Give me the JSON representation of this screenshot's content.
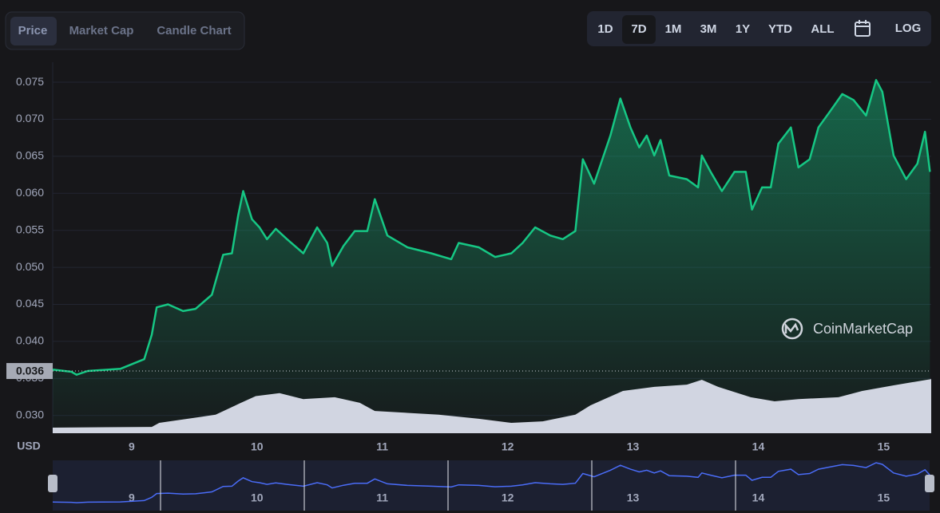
{
  "controls": {
    "tabs": [
      "Price",
      "Market Cap",
      "Candle Chart"
    ],
    "ranges": [
      "1D",
      "7D",
      "1M",
      "3M",
      "1Y",
      "YTD",
      "ALL"
    ],
    "scale": "LOG"
  },
  "chart_data": {
    "type": "area",
    "ylabel": "USD",
    "watermark": "CoinMarketCap",
    "grid": true,
    "current_price": 0.036,
    "xlim": [
      8.37,
      15.38
    ],
    "xticks": [
      9,
      10,
      11,
      12,
      13,
      14,
      15
    ],
    "ylim": [
      0.0276,
      0.0777
    ],
    "yticks": [
      {
        "value": 0.03,
        "label": "0.030"
      },
      0.035,
      {
        "value": 0.04,
        "label": "0.040"
      },
      0.045,
      {
        "value": 0.05,
        "label": "0.050"
      },
      0.055,
      {
        "value": 0.06,
        "label": "0.060"
      },
      0.065,
      {
        "value": 0.07,
        "label": "0.070"
      },
      0.075
    ],
    "y2lim": [
      0,
      100
    ],
    "series": [
      {
        "name": "Price",
        "color": "#16c784",
        "x": [
          8.37,
          8.52,
          8.56,
          8.65,
          8.91,
          9.1,
          9.16,
          9.2,
          9.29,
          9.41,
          9.51,
          9.64,
          9.73,
          9.8,
          9.85,
          9.89,
          9.96,
          10.02,
          10.08,
          10.15,
          10.24,
          10.37,
          10.48,
          10.56,
          10.6,
          10.69,
          10.78,
          10.88,
          10.94,
          11.04,
          11.2,
          11.39,
          11.55,
          11.61,
          11.77,
          11.9,
          12.03,
          12.12,
          12.22,
          12.34,
          12.44,
          12.54,
          12.6,
          12.69,
          12.82,
          12.9,
          12.98,
          13.05,
          13.11,
          13.17,
          13.22,
          13.29,
          13.43,
          13.52,
          13.55,
          13.62,
          13.71,
          13.81,
          13.9,
          13.95,
          14.03,
          14.1,
          14.16,
          14.26,
          14.32,
          14.41,
          14.48,
          14.57,
          14.67,
          14.76,
          14.86,
          14.94,
          14.99,
          15.08,
          15.18,
          15.27,
          15.33,
          15.37
        ],
        "values": [
          0.0362,
          0.0359,
          0.0355,
          0.036,
          0.0363,
          0.0376,
          0.0409,
          0.0446,
          0.045,
          0.0441,
          0.0444,
          0.0463,
          0.0517,
          0.0519,
          0.057,
          0.0603,
          0.0565,
          0.0554,
          0.0538,
          0.0552,
          0.0538,
          0.0519,
          0.0554,
          0.0533,
          0.0502,
          0.0529,
          0.0549,
          0.0549,
          0.0592,
          0.0543,
          0.0527,
          0.0519,
          0.0511,
          0.0533,
          0.0527,
          0.0514,
          0.0519,
          0.0533,
          0.0554,
          0.0543,
          0.0538,
          0.0549,
          0.0646,
          0.0613,
          0.0678,
          0.0728,
          0.0689,
          0.0662,
          0.0678,
          0.0651,
          0.0672,
          0.0624,
          0.0619,
          0.0608,
          0.0651,
          0.0629,
          0.0603,
          0.0629,
          0.0629,
          0.0578,
          0.0608,
          0.0608,
          0.0667,
          0.0689,
          0.0635,
          0.0646,
          0.0689,
          0.071,
          0.0734,
          0.0726,
          0.0705,
          0.0753,
          0.0737,
          0.0651,
          0.0619,
          0.064,
          0.0683,
          0.0629
        ]
      },
      {
        "color": "#d1d5e1",
        "axis": "y2",
        "x": [
          8.37,
          9.16,
          9.22,
          9.67,
          9.86,
          9.99,
          10.18,
          10.37,
          10.62,
          10.82,
          10.94,
          11.45,
          11.77,
          12.03,
          12.28,
          12.54,
          12.66,
          12.92,
          13.17,
          13.43,
          13.55,
          13.68,
          13.94,
          14.13,
          14.32,
          14.64,
          14.83,
          15.08,
          15.38
        ],
        "values": [
          1.5,
          1.7,
          2.8,
          5,
          8,
          10,
          10.8,
          9.2,
          9.7,
          8.2,
          6,
          5,
          3.9,
          2.8,
          3.2,
          5,
          7.5,
          11.4,
          12.5,
          13.1,
          14.4,
          12.5,
          9.7,
          8.6,
          9.2,
          9.7,
          11.4,
          12.9,
          14.6
        ]
      }
    ]
  }
}
